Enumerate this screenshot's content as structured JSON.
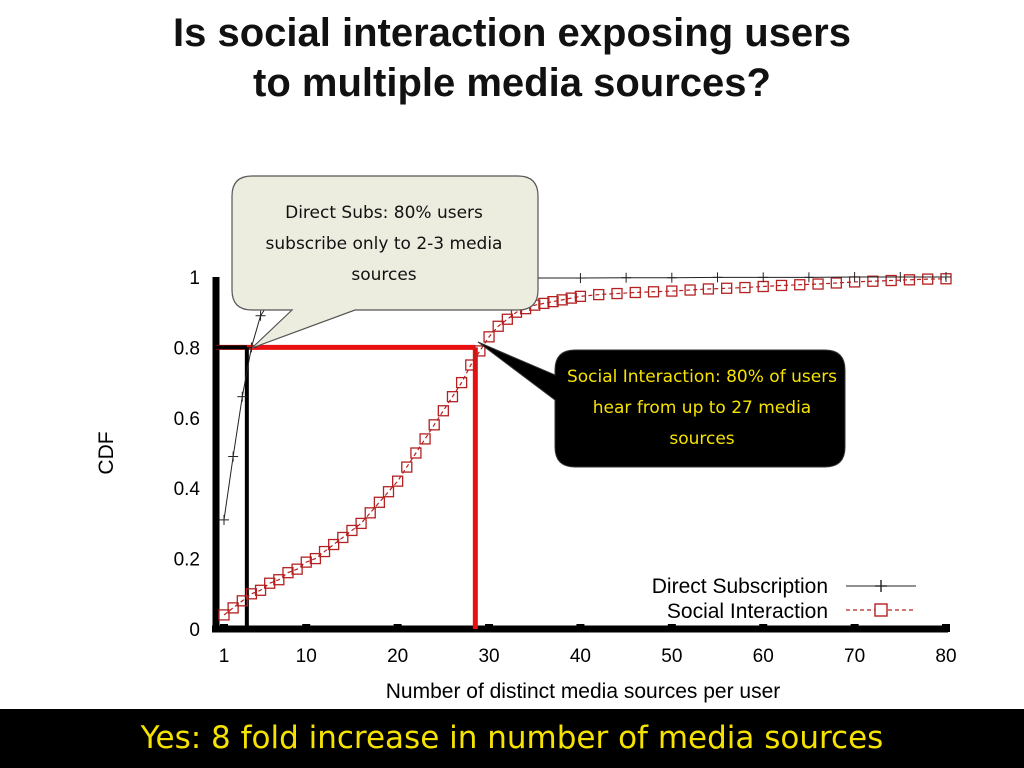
{
  "slide": {
    "title_line1": "Is social interaction exposing users",
    "title_line2": "to multiple media sources?",
    "footer": "Yes: 8 fold increase in number of media sources",
    "footer_color": "#f6e200"
  },
  "callouts": {
    "direct": "Direct Subs: 80% users subscribe only to 2-3 media sources",
    "social": "Social Interaction: 80% of users hear from up to 27 media sources"
  },
  "colors": {
    "axis": "#000000",
    "direct_series": "#222222",
    "social_series": "#b52020",
    "highlight": "#e81010",
    "callout_dark_bg": "#000000",
    "callout_light_bg": "#ececdf"
  },
  "chart_data": {
    "type": "line",
    "title": "",
    "xlabel": "Number of distinct media sources per user",
    "ylabel": "CDF",
    "xlim": [
      1,
      80
    ],
    "ylim": [
      0,
      1
    ],
    "x_ticks": [
      1,
      10,
      20,
      30,
      40,
      50,
      60,
      70,
      80
    ],
    "y_ticks": [
      0,
      0.2,
      0.4,
      0.6,
      0.8,
      1
    ],
    "y_tick_labels": [
      "0",
      "0.2",
      "0.4",
      "0.6",
      "0.8",
      "1"
    ],
    "legend_position": "bottom-right",
    "series": [
      {
        "name": "Direct Subscription",
        "marker": "plus",
        "line": "solid",
        "x": [
          1,
          2,
          3,
          4,
          5,
          6,
          7,
          8,
          9,
          10,
          12,
          14,
          16,
          18,
          20,
          25,
          30,
          35,
          40,
          45,
          50,
          55,
          60,
          65,
          70,
          75,
          80
        ],
        "y": [
          0.31,
          0.49,
          0.66,
          0.8,
          0.89,
          0.93,
          0.95,
          0.965,
          0.975,
          0.98,
          0.985,
          0.988,
          0.99,
          0.992,
          0.993,
          0.995,
          0.996,
          0.997,
          0.997,
          0.998,
          0.998,
          0.999,
          0.999,
          0.999,
          1.0,
          1.0,
          1.0
        ]
      },
      {
        "name": "Social Interaction",
        "marker": "square",
        "line": "dashed",
        "x": [
          1,
          2,
          3,
          4,
          5,
          6,
          7,
          8,
          9,
          10,
          11,
          12,
          13,
          14,
          15,
          16,
          17,
          18,
          19,
          20,
          21,
          22,
          23,
          24,
          25,
          26,
          27,
          28,
          29,
          30,
          31,
          32,
          33,
          34,
          35,
          36,
          37,
          38,
          39,
          40,
          42,
          44,
          46,
          48,
          50,
          52,
          54,
          56,
          58,
          60,
          62,
          64,
          66,
          68,
          70,
          72,
          74,
          76,
          78,
          80
        ],
        "y": [
          0.04,
          0.06,
          0.08,
          0.1,
          0.11,
          0.13,
          0.14,
          0.16,
          0.17,
          0.19,
          0.2,
          0.22,
          0.24,
          0.26,
          0.28,
          0.3,
          0.33,
          0.36,
          0.39,
          0.42,
          0.46,
          0.5,
          0.54,
          0.58,
          0.62,
          0.66,
          0.7,
          0.75,
          0.79,
          0.83,
          0.86,
          0.88,
          0.9,
          0.91,
          0.92,
          0.925,
          0.93,
          0.935,
          0.94,
          0.945,
          0.95,
          0.953,
          0.956,
          0.958,
          0.96,
          0.963,
          0.966,
          0.968,
          0.97,
          0.973,
          0.976,
          0.978,
          0.98,
          0.983,
          0.986,
          0.988,
          0.99,
          0.992,
          0.994,
          0.995
        ]
      }
    ],
    "highlights": [
      {
        "label": "Direct Subscription 80th percentile",
        "x": 3.5,
        "y": 0.8,
        "color": "#000000"
      },
      {
        "label": "Social Interaction 80th percentile",
        "x": 28.5,
        "y": 0.8,
        "color": "#e81010"
      }
    ]
  }
}
